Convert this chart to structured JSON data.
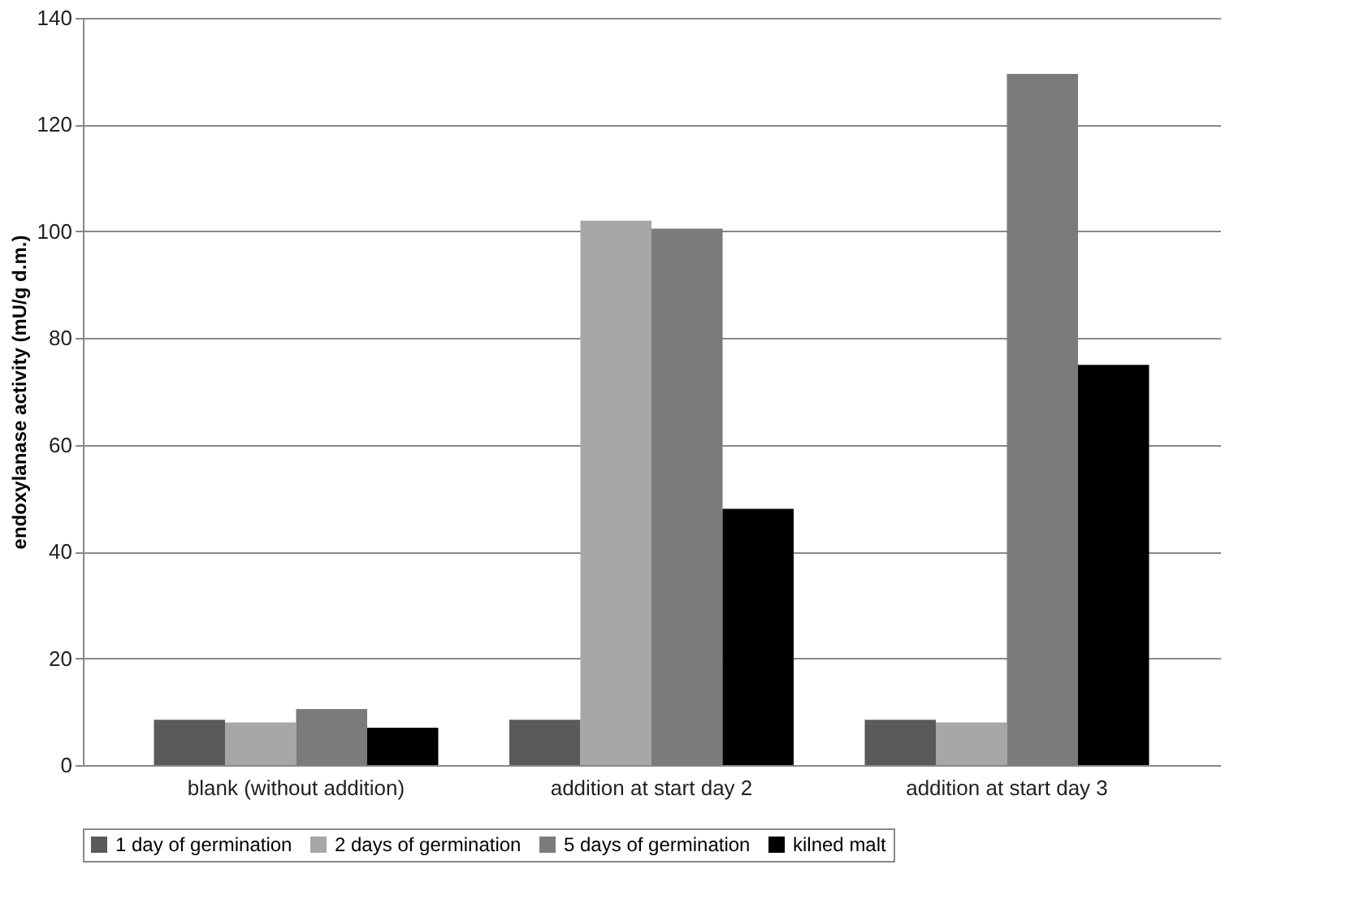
{
  "chart_data": {
    "type": "bar",
    "ylabel": "endoxylanase activity (mU/g d.m.)",
    "categories": [
      "blank (without addition)",
      "addition at start day 2",
      "addition at start day 3"
    ],
    "series": [
      {
        "name": "1 day of germination",
        "color": "#5a5a5c",
        "values": [
          8.5,
          8.5,
          8.5
        ]
      },
      {
        "name": "2 days of germination",
        "color": "#a7a7a9",
        "values": [
          8,
          102,
          8
        ]
      },
      {
        "name": "5 days of germination",
        "color": "#7b7b7e",
        "values": [
          10.5,
          100.5,
          129.5
        ]
      },
      {
        "name": "kilned malt",
        "color": "#000000",
        "values": [
          7,
          48,
          75
        ]
      }
    ],
    "ylim": [
      0,
      140
    ],
    "yticks": [
      0,
      20,
      40,
      60,
      80,
      100,
      120,
      140
    ],
    "grid": "y",
    "legend": "bottom"
  }
}
